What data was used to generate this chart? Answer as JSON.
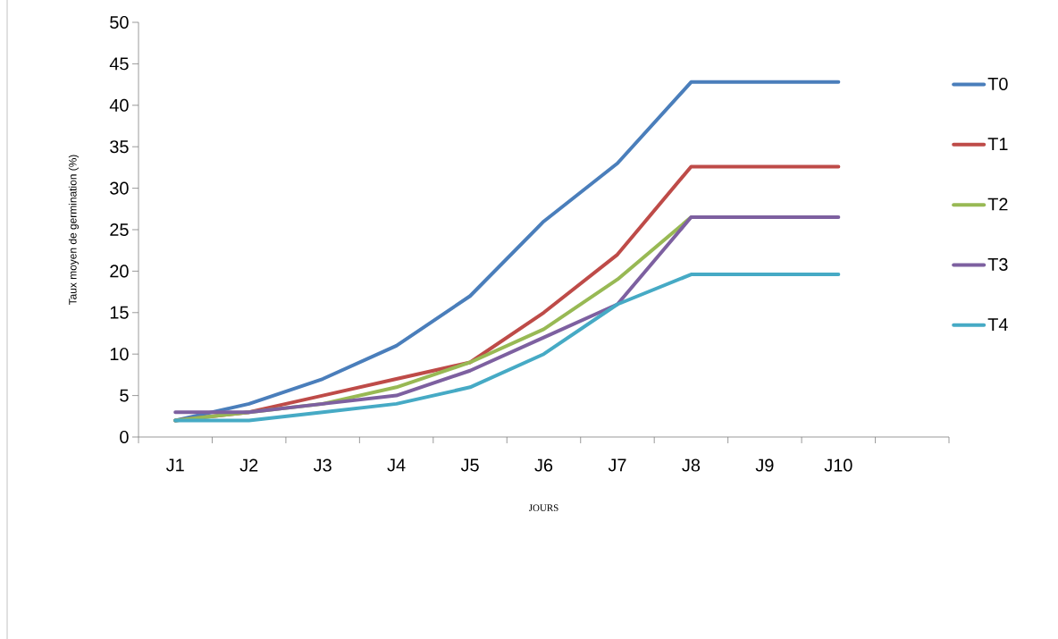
{
  "chart_data": {
    "type": "line",
    "xlabel": "JOURS",
    "ylabel": "Taux moyen de germination   (%)",
    "categories": [
      "J1",
      "J2",
      "J3",
      "J4",
      "J5",
      "J6",
      "J7",
      "J8",
      "J9",
      "J10",
      null
    ],
    "series": [
      {
        "name": "T0",
        "color": "#4a7ebb",
        "values": [
          2,
          4,
          7,
          11,
          17,
          26,
          33,
          42.8,
          42.8,
          42.8,
          null
        ]
      },
      {
        "name": "T1",
        "color": "#be4b48",
        "values": [
          2,
          3,
          5,
          7,
          9,
          15,
          22,
          32.6,
          32.6,
          32.6,
          null
        ]
      },
      {
        "name": "T2",
        "color": "#98b954",
        "values": [
          2,
          3,
          4,
          6,
          9,
          13,
          19,
          26.5,
          null,
          null,
          null
        ]
      },
      {
        "name": "T3",
        "color": "#7d60a0",
        "values": [
          3,
          3,
          4,
          5,
          8,
          12,
          16,
          26.5,
          26.5,
          26.5,
          null
        ]
      },
      {
        "name": "T4",
        "color": "#46aac5",
        "values": [
          2,
          2,
          3,
          4,
          6,
          10,
          16,
          19.6,
          19.6,
          19.6,
          null
        ]
      }
    ],
    "ylim": [
      0,
      50
    ],
    "yticks": [
      0,
      5,
      10,
      15,
      20,
      25,
      30,
      35,
      40,
      45,
      50
    ],
    "grid": false,
    "legend": "right",
    "marker": "none",
    "line_style": "solid"
  }
}
